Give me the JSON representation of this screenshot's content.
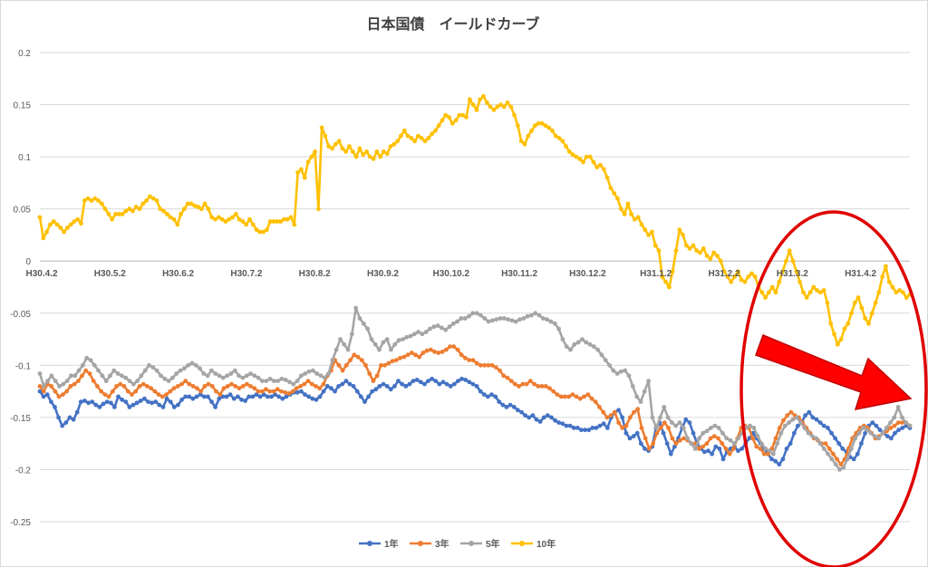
{
  "chart_data": {
    "type": "line",
    "title": "日本国債　イールドカーブ",
    "ylim": [
      -0.25,
      0.2
    ],
    "yticks": [
      0.2,
      0.15,
      0.1,
      0.05,
      0,
      -0.05,
      -0.1,
      -0.15,
      -0.2,
      -0.25
    ],
    "ytick_labels": [
      "0.2",
      "0.15",
      "0.1",
      "0.05",
      "0",
      "-0.05",
      "-0.1",
      "-0.15",
      "-0.2",
      "-0.25"
    ],
    "xtick_labels": [
      "H30.4.2",
      "H30.5.2",
      "H30.6.2",
      "H30.7.2",
      "H30.8.2",
      "H30.9.2",
      "H30.10.2",
      "H30.11.2",
      "H30.12.2",
      "H31.1.2",
      "H31.2.2",
      "H31.3.2",
      "H31.4.2"
    ],
    "grid": true,
    "legend_position": "bottom",
    "series": [
      {
        "name": "1年",
        "color": "#4472c4",
        "values": [
          -0.125,
          -0.13,
          -0.128,
          -0.135,
          -0.14,
          -0.15,
          -0.158,
          -0.155,
          -0.15,
          -0.152,
          -0.145,
          -0.135,
          -0.134,
          -0.136,
          -0.135,
          -0.138,
          -0.14,
          -0.137,
          -0.135,
          -0.136,
          -0.14,
          -0.13,
          -0.133,
          -0.135,
          -0.14,
          -0.138,
          -0.136,
          -0.134,
          -0.132,
          -0.135,
          -0.136,
          -0.135,
          -0.138,
          -0.14,
          -0.132,
          -0.135,
          -0.14,
          -0.138,
          -0.133,
          -0.13,
          -0.13,
          -0.132,
          -0.13,
          -0.128,
          -0.13,
          -0.13,
          -0.135,
          -0.14,
          -0.132,
          -0.13,
          -0.13,
          -0.128,
          -0.132,
          -0.13,
          -0.133,
          -0.134,
          -0.13,
          -0.13,
          -0.128,
          -0.13,
          -0.128,
          -0.13,
          -0.13,
          -0.128,
          -0.13,
          -0.132,
          -0.13,
          -0.128,
          -0.126,
          -0.126,
          -0.125,
          -0.128,
          -0.13,
          -0.132,
          -0.133,
          -0.13,
          -0.125,
          -0.12,
          -0.122,
          -0.125,
          -0.12,
          -0.118,
          -0.115,
          -0.118,
          -0.12,
          -0.125,
          -0.13,
          -0.135,
          -0.13,
          -0.125,
          -0.123,
          -0.12,
          -0.118,
          -0.12,
          -0.123,
          -0.12,
          -0.115,
          -0.118,
          -0.12,
          -0.118,
          -0.115,
          -0.114,
          -0.116,
          -0.118,
          -0.115,
          -0.113,
          -0.115,
          -0.118,
          -0.116,
          -0.118,
          -0.12,
          -0.118,
          -0.115,
          -0.113,
          -0.114,
          -0.116,
          -0.118,
          -0.12,
          -0.125,
          -0.128,
          -0.13,
          -0.128,
          -0.13,
          -0.135,
          -0.138,
          -0.14,
          -0.138,
          -0.14,
          -0.143,
          -0.145,
          -0.148,
          -0.15,
          -0.148,
          -0.152,
          -0.154,
          -0.15,
          -0.148,
          -0.15,
          -0.153,
          -0.155,
          -0.156,
          -0.158,
          -0.158,
          -0.16,
          -0.16,
          -0.162,
          -0.162,
          -0.162,
          -0.16,
          -0.16,
          -0.158,
          -0.156,
          -0.16,
          -0.15,
          -0.145,
          -0.143,
          -0.15,
          -0.165,
          -0.17,
          -0.168,
          -0.165,
          -0.175,
          -0.18,
          -0.182,
          -0.178,
          -0.16,
          -0.155,
          -0.165,
          -0.175,
          -0.185,
          -0.178,
          -0.17,
          -0.16,
          -0.152,
          -0.155,
          -0.165,
          -0.175,
          -0.18,
          -0.183,
          -0.182,
          -0.185,
          -0.178,
          -0.18,
          -0.19,
          -0.183,
          -0.18,
          -0.178,
          -0.182,
          -0.18,
          -0.175,
          -0.17,
          -0.165,
          -0.17,
          -0.175,
          -0.18,
          -0.185,
          -0.19,
          -0.192,
          -0.195,
          -0.19,
          -0.18,
          -0.175,
          -0.165,
          -0.158,
          -0.155,
          -0.148,
          -0.145,
          -0.15,
          -0.152,
          -0.155,
          -0.158,
          -0.16,
          -0.165,
          -0.17,
          -0.175,
          -0.18,
          -0.183,
          -0.188,
          -0.19,
          -0.185,
          -0.175,
          -0.165,
          -0.158,
          -0.155,
          -0.158,
          -0.162,
          -0.165,
          -0.168,
          -0.17,
          -0.165,
          -0.162,
          -0.16,
          -0.158,
          -0.16
        ]
      },
      {
        "name": "3年",
        "color": "#ed7d31",
        "values": [
          -0.12,
          -0.125,
          -0.118,
          -0.12,
          -0.125,
          -0.13,
          -0.128,
          -0.125,
          -0.12,
          -0.118,
          -0.115,
          -0.11,
          -0.105,
          -0.108,
          -0.115,
          -0.12,
          -0.125,
          -0.128,
          -0.13,
          -0.125,
          -0.12,
          -0.118,
          -0.12,
          -0.125,
          -0.128,
          -0.125,
          -0.12,
          -0.118,
          -0.12,
          -0.122,
          -0.125,
          -0.128,
          -0.13,
          -0.128,
          -0.125,
          -0.122,
          -0.12,
          -0.118,
          -0.115,
          -0.118,
          -0.12,
          -0.122,
          -0.125,
          -0.12,
          -0.118,
          -0.12,
          -0.125,
          -0.128,
          -0.122,
          -0.12,
          -0.118,
          -0.12,
          -0.122,
          -0.12,
          -0.118,
          -0.12,
          -0.122,
          -0.125,
          -0.125,
          -0.123,
          -0.125,
          -0.125,
          -0.123,
          -0.125,
          -0.126,
          -0.127,
          -0.125,
          -0.122,
          -0.12,
          -0.118,
          -0.115,
          -0.118,
          -0.12,
          -0.122,
          -0.118,
          -0.11,
          -0.105,
          -0.095,
          -0.1,
          -0.105,
          -0.1,
          -0.095,
          -0.09,
          -0.092,
          -0.095,
          -0.1,
          -0.108,
          -0.115,
          -0.11,
          -0.1,
          -0.1,
          -0.098,
          -0.096,
          -0.095,
          -0.093,
          -0.092,
          -0.09,
          -0.088,
          -0.09,
          -0.092,
          -0.088,
          -0.086,
          -0.085,
          -0.087,
          -0.088,
          -0.087,
          -0.085,
          -0.082,
          -0.082,
          -0.085,
          -0.09,
          -0.093,
          -0.095,
          -0.095,
          -0.098,
          -0.1,
          -0.1,
          -0.1,
          -0.1,
          -0.102,
          -0.105,
          -0.11,
          -0.112,
          -0.115,
          -0.118,
          -0.12,
          -0.118,
          -0.118,
          -0.115,
          -0.118,
          -0.12,
          -0.12,
          -0.12,
          -0.122,
          -0.125,
          -0.128,
          -0.13,
          -0.13,
          -0.13,
          -0.128,
          -0.13,
          -0.132,
          -0.13,
          -0.128,
          -0.132,
          -0.135,
          -0.14,
          -0.145,
          -0.15,
          -0.148,
          -0.145,
          -0.155,
          -0.16,
          -0.158,
          -0.15,
          -0.145,
          -0.142,
          -0.16,
          -0.17,
          -0.18,
          -0.175,
          -0.165,
          -0.16,
          -0.155,
          -0.16,
          -0.17,
          -0.175,
          -0.172,
          -0.17,
          -0.172,
          -0.175,
          -0.175,
          -0.18,
          -0.178,
          -0.175,
          -0.17,
          -0.168,
          -0.17,
          -0.175,
          -0.18,
          -0.185,
          -0.18,
          -0.17,
          -0.16,
          -0.158,
          -0.16,
          -0.17,
          -0.178,
          -0.18,
          -0.185,
          -0.185,
          -0.18,
          -0.17,
          -0.16,
          -0.153,
          -0.148,
          -0.145,
          -0.148,
          -0.15,
          -0.155,
          -0.16,
          -0.165,
          -0.17,
          -0.172,
          -0.175,
          -0.175,
          -0.18,
          -0.185,
          -0.19,
          -0.195,
          -0.19,
          -0.18,
          -0.17,
          -0.165,
          -0.16,
          -0.158,
          -0.16,
          -0.165,
          -0.17,
          -0.168,
          -0.165,
          -0.163,
          -0.16,
          -0.158,
          -0.155,
          -0.155,
          -0.155,
          -0.158
        ]
      },
      {
        "name": "5年",
        "color": "#a5a5a5",
        "values": [
          -0.108,
          -0.12,
          -0.115,
          -0.11,
          -0.115,
          -0.12,
          -0.118,
          -0.115,
          -0.11,
          -0.11,
          -0.105,
          -0.1,
          -0.093,
          -0.095,
          -0.1,
          -0.105,
          -0.11,
          -0.115,
          -0.11,
          -0.105,
          -0.108,
          -0.11,
          -0.112,
          -0.115,
          -0.118,
          -0.115,
          -0.11,
          -0.105,
          -0.1,
          -0.102,
          -0.105,
          -0.11,
          -0.113,
          -0.115,
          -0.112,
          -0.108,
          -0.105,
          -0.103,
          -0.1,
          -0.098,
          -0.1,
          -0.103,
          -0.108,
          -0.11,
          -0.105,
          -0.108,
          -0.11,
          -0.112,
          -0.11,
          -0.108,
          -0.105,
          -0.11,
          -0.112,
          -0.11,
          -0.108,
          -0.11,
          -0.112,
          -0.115,
          -0.115,
          -0.113,
          -0.115,
          -0.115,
          -0.113,
          -0.114,
          -0.116,
          -0.118,
          -0.115,
          -0.11,
          -0.108,
          -0.106,
          -0.105,
          -0.108,
          -0.11,
          -0.112,
          -0.108,
          -0.095,
          -0.085,
          -0.075,
          -0.08,
          -0.085,
          -0.07,
          -0.045,
          -0.055,
          -0.06,
          -0.065,
          -0.075,
          -0.08,
          -0.085,
          -0.078,
          -0.075,
          -0.085,
          -0.08,
          -0.076,
          -0.075,
          -0.073,
          -0.072,
          -0.07,
          -0.068,
          -0.07,
          -0.068,
          -0.065,
          -0.063,
          -0.062,
          -0.064,
          -0.066,
          -0.063,
          -0.06,
          -0.058,
          -0.055,
          -0.055,
          -0.053,
          -0.05,
          -0.05,
          -0.052,
          -0.055,
          -0.058,
          -0.057,
          -0.056,
          -0.055,
          -0.055,
          -0.056,
          -0.057,
          -0.058,
          -0.056,
          -0.055,
          -0.053,
          -0.052,
          -0.05,
          -0.052,
          -0.055,
          -0.056,
          -0.058,
          -0.06,
          -0.065,
          -0.075,
          -0.082,
          -0.085,
          -0.08,
          -0.078,
          -0.075,
          -0.078,
          -0.08,
          -0.082,
          -0.085,
          -0.09,
          -0.095,
          -0.1,
          -0.105,
          -0.108,
          -0.106,
          -0.105,
          -0.11,
          -0.12,
          -0.13,
          -0.135,
          -0.125,
          -0.115,
          -0.15,
          -0.16,
          -0.15,
          -0.14,
          -0.15,
          -0.155,
          -0.158,
          -0.155,
          -0.16,
          -0.17,
          -0.175,
          -0.18,
          -0.17,
          -0.165,
          -0.163,
          -0.16,
          -0.158,
          -0.16,
          -0.165,
          -0.17,
          -0.172,
          -0.175,
          -0.17,
          -0.165,
          -0.16,
          -0.158,
          -0.16,
          -0.168,
          -0.175,
          -0.18,
          -0.182,
          -0.185,
          -0.175,
          -0.165,
          -0.158,
          -0.155,
          -0.152,
          -0.15,
          -0.155,
          -0.16,
          -0.165,
          -0.168,
          -0.17,
          -0.175,
          -0.18,
          -0.185,
          -0.19,
          -0.195,
          -0.2,
          -0.198,
          -0.19,
          -0.18,
          -0.17,
          -0.165,
          -0.16,
          -0.162,
          -0.165,
          -0.168,
          -0.17,
          -0.165,
          -0.16,
          -0.155,
          -0.15,
          -0.14,
          -0.15,
          -0.155,
          -0.158
        ]
      },
      {
        "name": "10年",
        "color": "#ffc000",
        "values": [
          0.042,
          0.022,
          0.028,
          0.035,
          0.038,
          0.035,
          0.032,
          0.028,
          0.032,
          0.035,
          0.038,
          0.04,
          0.036,
          0.058,
          0.06,
          0.058,
          0.06,
          0.058,
          0.055,
          0.05,
          0.045,
          0.04,
          0.045,
          0.045,
          0.045,
          0.048,
          0.05,
          0.048,
          0.052,
          0.05,
          0.055,
          0.058,
          0.062,
          0.06,
          0.058,
          0.05,
          0.048,
          0.045,
          0.042,
          0.04,
          0.035,
          0.045,
          0.05,
          0.055,
          0.055,
          0.053,
          0.052,
          0.05,
          0.055,
          0.05,
          0.042,
          0.04,
          0.042,
          0.04,
          0.038,
          0.04,
          0.042,
          0.045,
          0.04,
          0.038,
          0.035,
          0.04,
          0.035,
          0.03,
          0.028,
          0.028,
          0.03,
          0.038,
          0.038,
          0.038,
          0.038,
          0.04,
          0.04,
          0.042,
          0.035,
          0.085,
          0.088,
          0.08,
          0.095,
          0.1,
          0.105,
          0.05,
          0.128,
          0.12,
          0.11,
          0.108,
          0.112,
          0.115,
          0.108,
          0.105,
          0.11,
          0.105,
          0.1,
          0.108,
          0.102,
          0.105,
          0.1,
          0.098,
          0.105,
          0.1,
          0.105,
          0.103,
          0.11,
          0.112,
          0.115,
          0.12,
          0.125,
          0.12,
          0.118,
          0.115,
          0.12,
          0.118,
          0.115,
          0.118,
          0.122,
          0.125,
          0.13,
          0.135,
          0.14,
          0.138,
          0.132,
          0.135,
          0.14,
          0.14,
          0.138,
          0.155,
          0.15,
          0.145,
          0.155,
          0.158,
          0.152,
          0.148,
          0.145,
          0.148,
          0.15,
          0.148,
          0.152,
          0.148,
          0.14,
          0.13,
          0.115,
          0.112,
          0.12,
          0.125,
          0.13,
          0.132,
          0.132,
          0.13,
          0.128,
          0.125,
          0.12,
          0.118,
          0.115,
          0.11,
          0.105,
          0.102,
          0.1,
          0.098,
          0.095,
          0.1,
          0.1,
          0.095,
          0.09,
          0.092,
          0.088,
          0.08,
          0.07,
          0.065,
          0.06,
          0.05,
          0.045,
          0.055,
          0.045,
          0.04,
          0.042,
          0.035,
          0.03,
          0.025,
          0.028,
          0.015,
          0.01,
          -0.015,
          -0.02,
          -0.025,
          -0.01,
          0.01,
          0.03,
          0.025,
          0.015,
          0.012,
          0.015,
          0.01,
          0.008,
          0.012,
          0.005,
          0.002,
          0.008,
          0.005,
          0.0,
          -0.01,
          -0.015,
          -0.02,
          -0.015,
          -0.01,
          -0.018,
          -0.02,
          -0.015,
          -0.012,
          -0.015,
          -0.025,
          -0.03,
          -0.035,
          -0.03,
          -0.025,
          -0.03,
          -0.02,
          -0.01,
          0.0,
          0.01,
          0.0,
          -0.01,
          -0.02,
          -0.03,
          -0.035,
          -0.03,
          -0.025,
          -0.028,
          -0.03,
          -0.028,
          -0.04,
          -0.06,
          -0.07,
          -0.08,
          -0.075,
          -0.065,
          -0.06,
          -0.05,
          -0.04,
          -0.035,
          -0.045,
          -0.055,
          -0.06,
          -0.05,
          -0.04,
          -0.03,
          -0.015,
          -0.005,
          -0.02,
          -0.025,
          -0.03,
          -0.028,
          -0.03,
          -0.035,
          -0.032
        ]
      }
    ]
  },
  "annotations": {
    "highlight_color": "#e00000"
  }
}
